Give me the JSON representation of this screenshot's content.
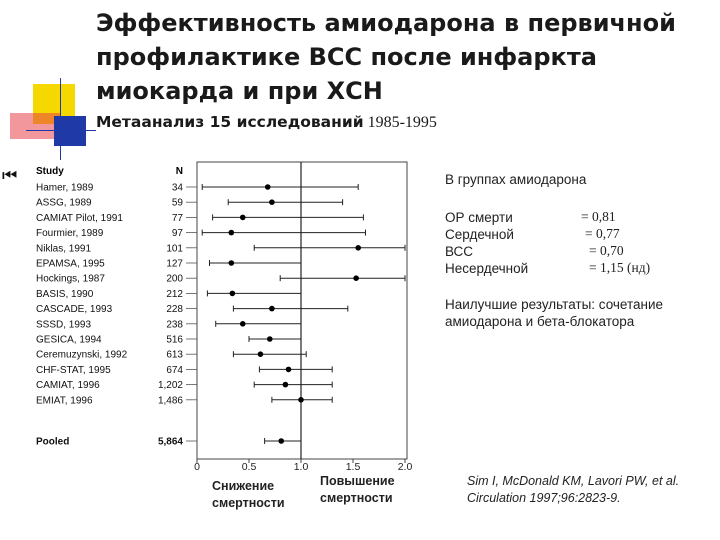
{
  "title_lines": [
    "Эффективность амиодарона в первичной",
    "профилактике ВСС после инфаркта",
    "миокарда и при ХСН"
  ],
  "subtitle": "Метаанализ 15 исследований",
  "subtitle_years": "1985-1995",
  "nav_icon": "first-page-icon",
  "nav_glyph": "⏮",
  "column_headers": {
    "study": "Study",
    "n": "N"
  },
  "amiodarone_group": {
    "header": "В группах амиодарона",
    "rows": [
      {
        "label": "ОР смерти",
        "value": "=  0,81"
      },
      {
        "label": "Сердечной",
        "value": "=  0,77"
      },
      {
        "label": "ВСС",
        "value": "=  0,70"
      },
      {
        "label": "Несердечной",
        "value": "= 1,15 (нд)"
      }
    ]
  },
  "best_results": "Наилучшие результаты: сочетание амиодарона и бета-блокатора",
  "captions": {
    "decrease": "Снижение смертности",
    "increase": "Повышение смертности"
  },
  "citation_lines": [
    "Sim I, McDonald KM, Lavori PW, et al.",
    "Circulation 1997;96:2823-9."
  ],
  "chart_data": {
    "type": "forest",
    "x_ticks": [
      "0",
      "0.5",
      "1.0",
      "1.5",
      "2.0"
    ],
    "xlim": [
      0,
      2.0
    ],
    "reference_line": 1.0,
    "studies": [
      {
        "study": "Hamer, 1989",
        "n": "34",
        "or": 0.68,
        "ci": [
          0.05,
          1.55
        ]
      },
      {
        "study": "ASSG, 1989",
        "n": "59",
        "or": 0.72,
        "ci": [
          0.3,
          1.4
        ]
      },
      {
        "study": "CAMIAT Pilot, 1991",
        "n": "77",
        "or": 0.44,
        "ci": [
          0.15,
          1.6
        ]
      },
      {
        "study": "Fourmier, 1989",
        "n": "97",
        "or": 0.33,
        "ci": [
          0.05,
          1.62
        ]
      },
      {
        "study": "Niklas, 1991",
        "n": "101",
        "or": 1.55,
        "ci": [
          0.55,
          2.0
        ]
      },
      {
        "study": "EPAMSA, 1995",
        "n": "127",
        "or": 0.33,
        "ci": [
          0.12,
          1.0
        ]
      },
      {
        "study": "Hockings, 1987",
        "n": "200",
        "or": 1.53,
        "ci": [
          0.8,
          2.0
        ]
      },
      {
        "study": "BASIS, 1990",
        "n": "212",
        "or": 0.34,
        "ci": [
          0.1,
          1.0
        ]
      },
      {
        "study": "CASCADE, 1993",
        "n": "228",
        "or": 0.72,
        "ci": [
          0.35,
          1.45
        ]
      },
      {
        "study": "SSSD, 1993",
        "n": "238",
        "or": 0.44,
        "ci": [
          0.18,
          1.0
        ]
      },
      {
        "study": "GESICA, 1994",
        "n": "516",
        "or": 0.7,
        "ci": [
          0.5,
          1.0
        ]
      },
      {
        "study": "Ceremuzynski, 1992",
        "n": "613",
        "or": 0.61,
        "ci": [
          0.35,
          1.05
        ]
      },
      {
        "study": "CHF-STAT, 1995",
        "n": "674",
        "or": 0.88,
        "ci": [
          0.6,
          1.3
        ]
      },
      {
        "study": "CAMIAT, 1996",
        "n": "1,202",
        "or": 0.85,
        "ci": [
          0.55,
          1.3
        ]
      },
      {
        "study": "EMIAT, 1996",
        "n": "1,486",
        "or": 1.0,
        "ci": [
          0.72,
          1.3
        ]
      }
    ],
    "pooled": {
      "study": "Pooled",
      "n": "5,864",
      "or": 0.81,
      "ci": [
        0.65,
        1.0
      ]
    }
  }
}
